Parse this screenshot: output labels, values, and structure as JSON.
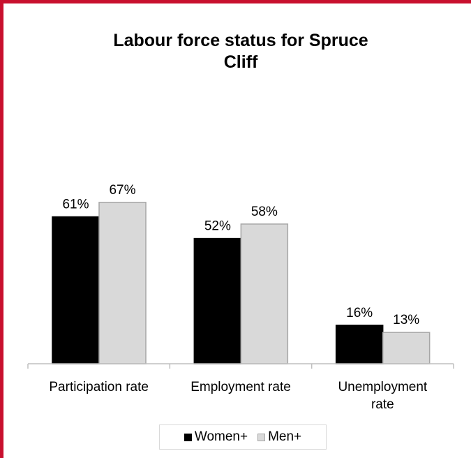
{
  "chart_data": {
    "type": "bar",
    "title_lines": [
      "Labour force status for Spruce",
      "Cliff"
    ],
    "categories": [
      [
        "Participation rate"
      ],
      [
        "Employment rate"
      ],
      [
        "Unemployment",
        "rate"
      ]
    ],
    "series": [
      {
        "name": "Women+",
        "values": [
          61,
          52,
          16
        ],
        "labels": [
          "61%",
          "52%",
          "16%"
        ],
        "color": "#000000",
        "stroke": "#000000"
      },
      {
        "name": "Men+",
        "values": [
          67,
          58,
          13
        ],
        "labels": [
          "67%",
          "58%",
          "13%"
        ],
        "color": "#d9d9d9",
        "stroke": "#a6a6a6"
      }
    ],
    "ylim": [
      0,
      100
    ],
    "grid": false,
    "legend_position": "bottom",
    "axis_color": "#bfbfbf"
  }
}
